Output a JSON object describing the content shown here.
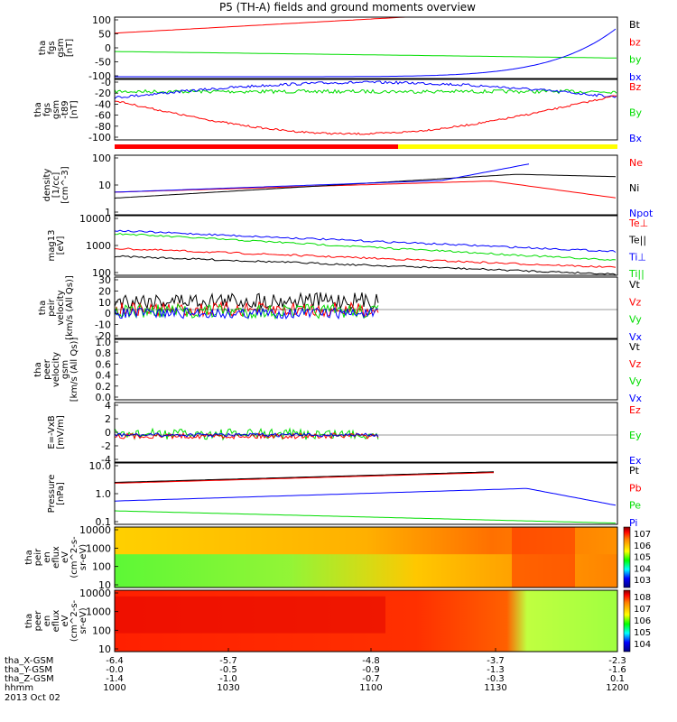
{
  "title": "P5 (TH-A) fields and ground moments overview",
  "colors": {
    "red": "#ff0000",
    "green": "#00dd00",
    "blue": "#0000ff",
    "black": "#000000",
    "yellow": "#ffff00"
  },
  "chart_data": [
    {
      "type": "line",
      "panel": "fgs",
      "ylabel": [
        "tha",
        "fgs",
        "gsm",
        "[nT]"
      ],
      "yticks": [
        "100",
        "50",
        "0",
        "-50",
        "-100"
      ],
      "ylim": [
        -100,
        100
      ],
      "series": [
        {
          "name": "Bt",
          "color": "#000000"
        },
        {
          "name": "bz",
          "color": "#ff0000"
        },
        {
          "name": "by",
          "color": "#00dd00"
        },
        {
          "name": "bx",
          "color": "#0000ff"
        }
      ]
    },
    {
      "type": "line",
      "panel": "fgs-t89",
      "ylabel": [
        "tha",
        "fgs",
        "gsm",
        "-t89",
        "[nT]"
      ],
      "yticks": [
        "-0",
        "-20",
        "-40",
        "-60",
        "-80",
        "-100"
      ],
      "ylim": [
        -100,
        0
      ],
      "series": [
        {
          "name": "Bz",
          "color": "#ff0000"
        },
        {
          "name": "By",
          "color": "#00dd00"
        },
        {
          "name": "Bx",
          "color": "#0000ff"
        }
      ]
    },
    {
      "type": "line",
      "panel": "density",
      "ylabel": [
        "density",
        "[1/cc]",
        "[cm^-3]"
      ],
      "yticks": [
        "100",
        "10",
        "1"
      ],
      "log": true,
      "series": [
        {
          "name": "Ne",
          "color": "#ff0000"
        },
        {
          "name": "Ni",
          "color": "#000000"
        },
        {
          "name": "Npot",
          "color": "#0000ff"
        }
      ]
    },
    {
      "type": "line",
      "panel": "temperature",
      "ylabel": [
        "mag13",
        "[eV]"
      ],
      "yticks": [
        "10000",
        "1000",
        "100"
      ],
      "log": true,
      "series": [
        {
          "name": "Te⊥",
          "color": "#ff0000"
        },
        {
          "name": "Te||",
          "color": "#000000"
        },
        {
          "name": "Ti⊥",
          "color": "#0000ff"
        },
        {
          "name": "Ti||",
          "color": "#00dd00"
        }
      ]
    },
    {
      "type": "line",
      "panel": "peir velocity",
      "ylabel": [
        "tha",
        "peir",
        "velocity",
        "[km/s (All Qs)]"
      ],
      "yticks": [
        "30",
        "20",
        "10",
        "0",
        "-10",
        "-20"
      ],
      "ylim": [
        -20,
        30
      ],
      "series": [
        {
          "name": "Vt",
          "color": "#000000"
        },
        {
          "name": "Vz",
          "color": "#ff0000"
        },
        {
          "name": "Vy",
          "color": "#00dd00"
        },
        {
          "name": "Vx",
          "color": "#0000ff"
        }
      ]
    },
    {
      "type": "line",
      "panel": "peer velocity",
      "ylabel": [
        "tha",
        "peer",
        "velocity",
        "gsm",
        "[km/s (All Qs)]"
      ],
      "yticks": [
        "1.0",
        "0.8",
        "0.6",
        "0.4",
        "0.2",
        "0.0"
      ],
      "ylim": [
        0,
        1
      ],
      "series": [
        {
          "name": "Vt",
          "color": "#000000"
        },
        {
          "name": "Vz",
          "color": "#ff0000"
        },
        {
          "name": "Vy",
          "color": "#00dd00"
        },
        {
          "name": "Vx",
          "color": "#0000ff"
        }
      ]
    },
    {
      "type": "line",
      "panel": "E=-VxB",
      "ylabel": [
        "E=-VxB",
        "[mV/m]"
      ],
      "yticks": [
        "4",
        "2",
        "0",
        "-2",
        "-4"
      ],
      "ylim": [
        -4,
        4
      ],
      "series": [
        {
          "name": "Ez",
          "color": "#ff0000"
        },
        {
          "name": "Ey",
          "color": "#00dd00"
        },
        {
          "name": "Ex",
          "color": "#0000ff"
        }
      ]
    },
    {
      "type": "line",
      "panel": "pressure",
      "ylabel": [
        "Pressure",
        "[nPa]"
      ],
      "yticks": [
        "10.0",
        "1.0",
        "0.1"
      ],
      "log": true,
      "series": [
        {
          "name": "Pt",
          "color": "#000000"
        },
        {
          "name": "Pb",
          "color": "#ff0000"
        },
        {
          "name": "Pe",
          "color": "#00dd00"
        },
        {
          "name": "Pi",
          "color": "#0000ff"
        }
      ]
    },
    {
      "type": "heatmap",
      "panel": "peir eflux",
      "ylabel": [
        "tha",
        "peir",
        "en",
        "eflux",
        "eV",
        "(cm^2-s-",
        "sr-eV)"
      ],
      "yticks": [
        "10000",
        "1000",
        "100",
        "10"
      ],
      "colorbar": [
        "10^7",
        "10^6",
        "10^5",
        "10^4",
        "10^3"
      ]
    },
    {
      "type": "heatmap",
      "panel": "peer eflux",
      "ylabel": [
        "tha",
        "peer",
        "en",
        "eflux",
        "eV",
        "(cm^2-s-",
        "sr-eV)"
      ],
      "yticks": [
        "10000",
        "1000",
        "100",
        "10"
      ],
      "colorbar": [
        "10^8",
        "10^7",
        "10^6",
        "10^5",
        "10^4"
      ]
    }
  ],
  "xaxis": {
    "rows": [
      {
        "label": "tha_X-GSM",
        "values": [
          "-6.4",
          "-5.7",
          "-4.8",
          "-3.7",
          "-2.3"
        ]
      },
      {
        "label": "tha_Y-GSM",
        "values": [
          "-0.0",
          "-0.5",
          "-0.9",
          "-1.3",
          "-1.6"
        ]
      },
      {
        "label": "tha_Z-GSM",
        "values": [
          "-1.4",
          "-1.0",
          "-0.7",
          "-0.3",
          "0.1"
        ]
      },
      {
        "label": "hhmm",
        "values": [
          "1000",
          "1030",
          "1100",
          "1130",
          "1200"
        ]
      }
    ],
    "date": "2013 Oct 02"
  }
}
